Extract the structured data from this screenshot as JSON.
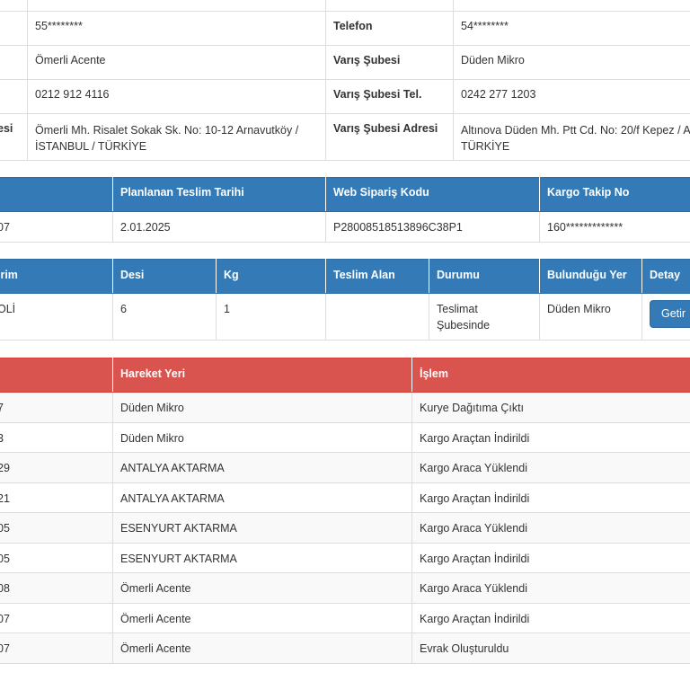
{
  "info": {
    "rows": [
      {
        "left_label": "",
        "left_value": "55********",
        "right_label": "Telefon",
        "right_value": "54********"
      },
      {
        "left_label": "",
        "left_value": "Ömerli Acente",
        "right_label": "Varış Şubesi",
        "right_value": "Düden Mikro"
      },
      {
        "left_label": "",
        "left_value": "0212 912 4116",
        "right_label": "Varış Şubesi Tel.",
        "right_value": "0242 277 1203"
      },
      {
        "left_label": "esi",
        "left_value_1": "Ömerli Mh. Risalet Sokak Sk. No: 10-12 Arnavutköy /",
        "left_value_2": "İSTANBUL / TÜRKİYE",
        "right_label": "Varış Şubesi Adresi",
        "right_value_1": "Altınova Düden Mh. Ptt Cd. No: 20/f Kepez / A",
        "right_value_2": "TÜRKİYE"
      }
    ]
  },
  "order": {
    "headers": [
      "",
      "Planlanan Teslim Tarihi",
      "Web Sipariş Kodu",
      "Kargo Takip No"
    ],
    "row": [
      "07",
      "2.01.2025",
      "P28008518513896C38P1",
      "160*************"
    ]
  },
  "package": {
    "headers": [
      "irim",
      "Desi",
      "Kg",
      "Teslim Alan",
      "Durumu",
      "Bulunduğu Yer",
      "Detay"
    ],
    "row": {
      "birim": "OLİ",
      "desi": "6",
      "kg": "1",
      "teslim_alan": "",
      "durum_1": "Teslimat",
      "durum_2": "Şubesinde",
      "yer": "Düden Mikro"
    },
    "button_label": "Getir"
  },
  "history": {
    "headers": [
      "",
      "Hareket Yeri",
      "İşlem"
    ],
    "rows": [
      {
        "time": "7",
        "place": "Düden Mikro",
        "action": "Kurye Dağıtıma Çıktı"
      },
      {
        "time": "3",
        "place": "Düden Mikro",
        "action": "Kargo Araçtan İndirildi"
      },
      {
        "time": "29",
        "place": "ANTALYA AKTARMA",
        "action": "Kargo Araca Yüklendi"
      },
      {
        "time": "21",
        "place": "ANTALYA AKTARMA",
        "action": "Kargo Araçtan İndirildi"
      },
      {
        "time": "05",
        "place": "ESENYURT AKTARMA",
        "action": "Kargo Araca Yüklendi"
      },
      {
        "time": "05",
        "place": "ESENYURT AKTARMA",
        "action": "Kargo Araçtan İndirildi"
      },
      {
        "time": "08",
        "place": "Ömerli Acente",
        "action": "Kargo Araca Yüklendi"
      },
      {
        "time": "07",
        "place": "Ömerli Acente",
        "action": "Kargo Araçtan İndirildi"
      },
      {
        "time": "07",
        "place": "Ömerli Acente",
        "action": "Evrak Oluşturuldu"
      }
    ]
  },
  "colors": {
    "primary": "#337ab7",
    "danger": "#d9534f",
    "border": "#dddddd"
  }
}
